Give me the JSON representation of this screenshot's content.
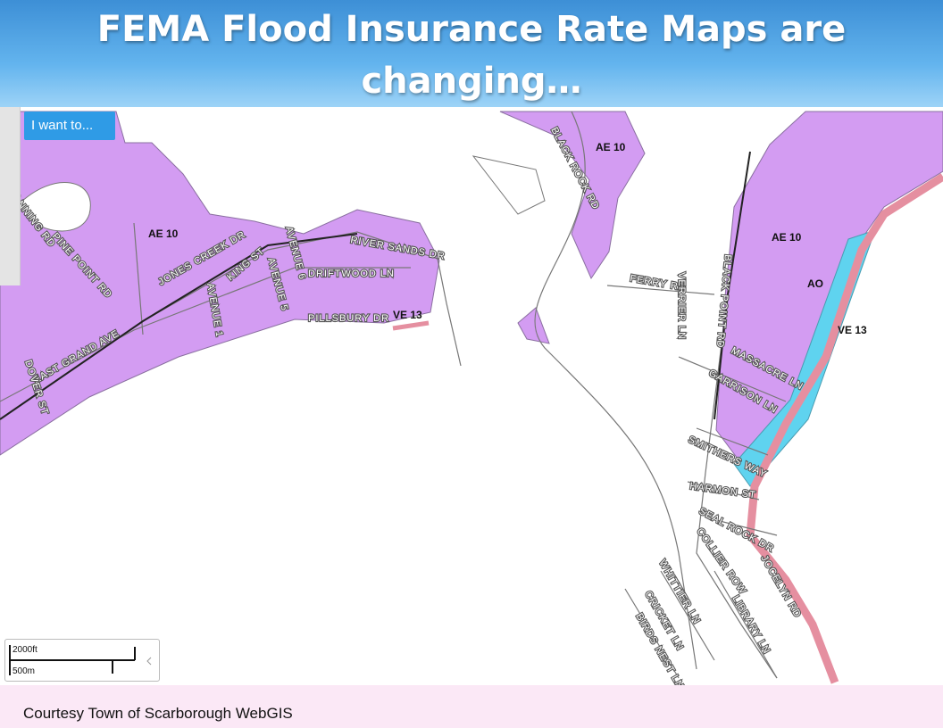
{
  "header": {
    "title": "FEMA Flood Insurance Rate Maps are changing…"
  },
  "toolbar": {
    "button": "I want to..."
  },
  "scale": {
    "imperial": "2000ft",
    "metric": "500m"
  },
  "zones": [
    "AE 10",
    "AE 10",
    "AE 10",
    "AO",
    "VE 13",
    "VE 13"
  ],
  "streets": [
    "BLACK ROCK RD",
    "CANNING RD",
    "PINE POINT RD",
    "JONES CREEK DR",
    "KING ST",
    "AVENUE 6",
    "AVENUE 5",
    "AVENUE 1",
    "RIVER SANDS DR",
    "DRIFTWOOD LN",
    "PILLSBURY DR",
    "EAST GRAND AVE",
    "DOVER ST",
    "FERRY RD",
    "VERRIER LN",
    "BLACK POINT RD",
    "MASSACRE LN",
    "GARRISON LN",
    "SMITHERS WAY",
    "HARMON ST",
    "SEAL ROCK DR",
    "COLLIER ROW",
    "JOCELYN RD",
    "LIBRARY LN",
    "WHITTIER LN",
    "CRICKET LN",
    "BIRDS NEST LN"
  ],
  "footer": {
    "caption": "Courtesy Town of Scarborough WebGIS"
  }
}
